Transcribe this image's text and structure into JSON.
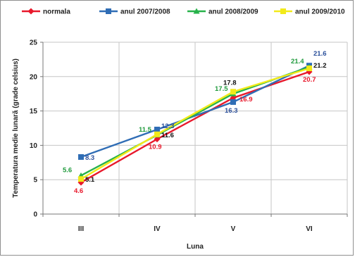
{
  "chart_data": {
    "type": "line",
    "categories": [
      "III",
      "IV",
      "V",
      "VI"
    ],
    "xlabel": "Luna",
    "ylabel": "Temperatura medie lunară (grade celsius)",
    "ylim": [
      0,
      25
    ],
    "yticks": [
      "0",
      "5",
      "10",
      "15",
      "20",
      "25"
    ],
    "grid": true,
    "legend_position": "top",
    "series": [
      {
        "name": "normala",
        "color": "#e8182b",
        "marker": "diamond",
        "values": [
          4.6,
          10.9,
          16.9,
          20.7
        ],
        "labels": [
          "4.6",
          "10.9",
          "16.9",
          "20.7"
        ],
        "label_color": "#e8182b"
      },
      {
        "name": "anul 2007/2008",
        "color": "#2f6db5",
        "marker": "square",
        "values": [
          8.3,
          12.3,
          16.3,
          21.6
        ],
        "labels": [
          "8.3",
          "12.3",
          "16.3",
          "21.6"
        ],
        "label_color": "#2a4f9a"
      },
      {
        "name": "anul 2008/2009",
        "color": "#27b24a",
        "marker": "triangle",
        "values": [
          5.6,
          11.5,
          17.5,
          21.4
        ],
        "labels": [
          "5.6",
          "11.5",
          "17.5",
          "21.4"
        ],
        "label_color": "#1f9a3c"
      },
      {
        "name": "anul 2009/2010",
        "color": "#f2ea1a",
        "marker": "square",
        "values": [
          5.1,
          11.6,
          17.8,
          21.2
        ],
        "labels": [
          "5.1",
          "11.6",
          "17.8",
          "21.2"
        ],
        "label_color": "#111111"
      }
    ]
  }
}
